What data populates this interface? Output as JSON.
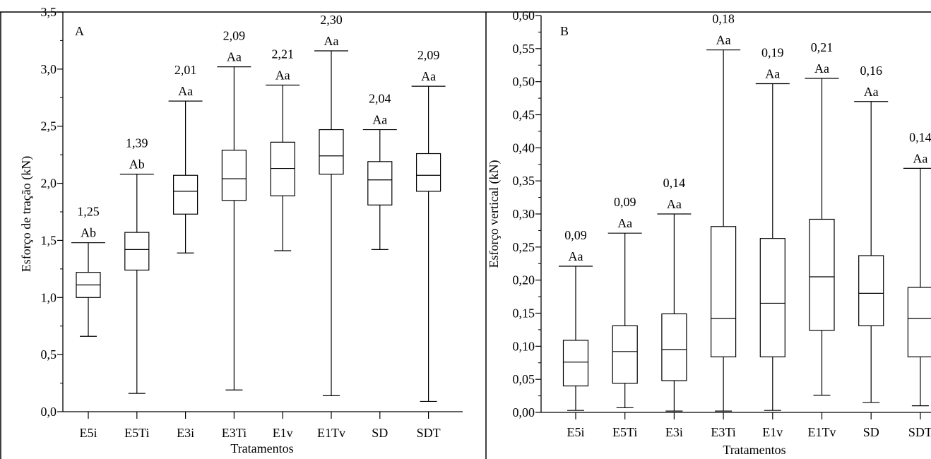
{
  "chart_data": [
    {
      "type": "boxplot",
      "panel_label": "A",
      "ylabel": "Esforço de tração (kN)",
      "xlabel": "Tratamentos",
      "ylim": [
        0,
        3.5
      ],
      "yticks": [
        "0,0",
        "0,5",
        "1,0",
        "1,5",
        "2,0",
        "2,5",
        "3,0",
        "3,5"
      ],
      "categories": [
        "E5i",
        "E5Ti",
        "E3i",
        "E3Ti",
        "E1v",
        "E1Tv",
        "SD",
        "SDT"
      ],
      "boxes": [
        {
          "min": 0.66,
          "q1": 1.0,
          "median": 1.11,
          "q3": 1.22,
          "max": 1.48,
          "mean_label": "1,25",
          "letters": "Ab"
        },
        {
          "min": 0.16,
          "q1": 1.24,
          "median": 1.42,
          "q3": 1.57,
          "max": 2.08,
          "mean_label": "1,39",
          "letters": "Ab"
        },
        {
          "min": 1.39,
          "q1": 1.73,
          "median": 1.93,
          "q3": 2.07,
          "max": 2.72,
          "mean_label": "2,01",
          "letters": "Aa"
        },
        {
          "min": 0.19,
          "q1": 1.85,
          "median": 2.04,
          "q3": 2.29,
          "max": 3.02,
          "mean_label": "2,09",
          "letters": "Aa"
        },
        {
          "min": 1.41,
          "q1": 1.89,
          "median": 2.13,
          "q3": 2.36,
          "max": 2.86,
          "mean_label": "2,21",
          "letters": "Aa"
        },
        {
          "min": 0.14,
          "q1": 2.08,
          "median": 2.24,
          "q3": 2.47,
          "max": 3.16,
          "mean_label": "2,30",
          "letters": "Aa"
        },
        {
          "min": 1.42,
          "q1": 1.81,
          "median": 2.03,
          "q3": 2.19,
          "max": 2.47,
          "mean_label": "2,04",
          "letters": "Aa"
        },
        {
          "min": 0.09,
          "q1": 1.93,
          "median": 2.07,
          "q3": 2.26,
          "max": 2.85,
          "mean_label": "2,09",
          "letters": "Aa"
        }
      ]
    },
    {
      "type": "boxplot",
      "panel_label": "B",
      "ylabel": "Esforço vertical (kN)",
      "xlabel": "Tratamentos",
      "ylim": [
        0,
        0.6
      ],
      "yticks": [
        "0,00",
        "0,05",
        "0,10",
        "0,15",
        "0,20",
        "0,25",
        "0,30",
        "0,35",
        "0,40",
        "0,45",
        "0,50",
        "0,55",
        "0,60"
      ],
      "categories": [
        "E5i",
        "E5Ti",
        "E3i",
        "E3Ti",
        "E1v",
        "E1Tv",
        "SD",
        "SDT"
      ],
      "boxes": [
        {
          "min": 0.003,
          "q1": 0.04,
          "median": 0.076,
          "q3": 0.109,
          "max": 0.221,
          "mean_label": "0,09",
          "letters": "Aa"
        },
        {
          "min": 0.007,
          "q1": 0.044,
          "median": 0.092,
          "q3": 0.131,
          "max": 0.271,
          "mean_label": "0,09",
          "letters": "Aa"
        },
        {
          "min": 0.002,
          "q1": 0.048,
          "median": 0.095,
          "q3": 0.149,
          "max": 0.3,
          "mean_label": "0,14",
          "letters": "Aa"
        },
        {
          "min": 0.002,
          "q1": 0.084,
          "median": 0.142,
          "q3": 0.281,
          "max": 0.548,
          "mean_label": "0,18",
          "letters": "Aa"
        },
        {
          "min": 0.003,
          "q1": 0.084,
          "median": 0.165,
          "q3": 0.263,
          "max": 0.497,
          "mean_label": "0,19",
          "letters": "Aa"
        },
        {
          "min": 0.026,
          "q1": 0.124,
          "median": 0.205,
          "q3": 0.292,
          "max": 0.505,
          "mean_label": "0,21",
          "letters": "Aa"
        },
        {
          "min": 0.015,
          "q1": 0.131,
          "median": 0.18,
          "q3": 0.237,
          "max": 0.47,
          "mean_label": "0,16",
          "letters": "Aa"
        },
        {
          "min": 0.01,
          "q1": 0.084,
          "median": 0.142,
          "q3": 0.189,
          "max": 0.369,
          "mean_label": "0,14",
          "letters": "Aa"
        }
      ]
    }
  ]
}
